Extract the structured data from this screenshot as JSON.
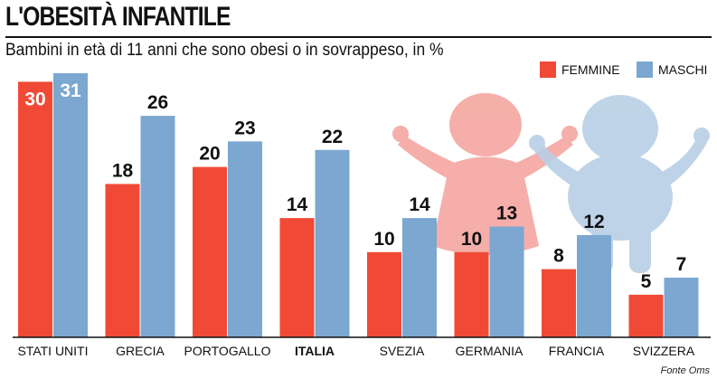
{
  "header": {
    "title": "L'OBESITÀ INFANTILE",
    "subtitle": "Bambini in età di 11 anni che sono obesi o in sovrappeso, in %"
  },
  "colors": {
    "femmine": "#f04a36",
    "maschi": "#7ba7d0",
    "girl_silhouette": "#f4a6a0",
    "boy_silhouette": "#b9cfe6"
  },
  "icons": [
    "girl-silhouette-icon",
    "boy-silhouette-icon"
  ],
  "source": "Fonte Oms",
  "chart_data": {
    "type": "bar",
    "categories": [
      "STATI UNITI",
      "GRECIA",
      "PORTOGALLO",
      "ITALIA",
      "SVEZIA",
      "GERMANIA",
      "FRANCIA",
      "SVIZZERA"
    ],
    "highlighted_category": "ITALIA",
    "series": [
      {
        "name": "FEMMINE",
        "values": [
          30,
          18,
          20,
          14,
          10,
          10,
          8,
          5
        ]
      },
      {
        "name": "MASCHI",
        "values": [
          31,
          26,
          23,
          22,
          14,
          13,
          12,
          7
        ]
      }
    ],
    "ylim": [
      0,
      31
    ],
    "legend": "top-right",
    "grid": false
  }
}
